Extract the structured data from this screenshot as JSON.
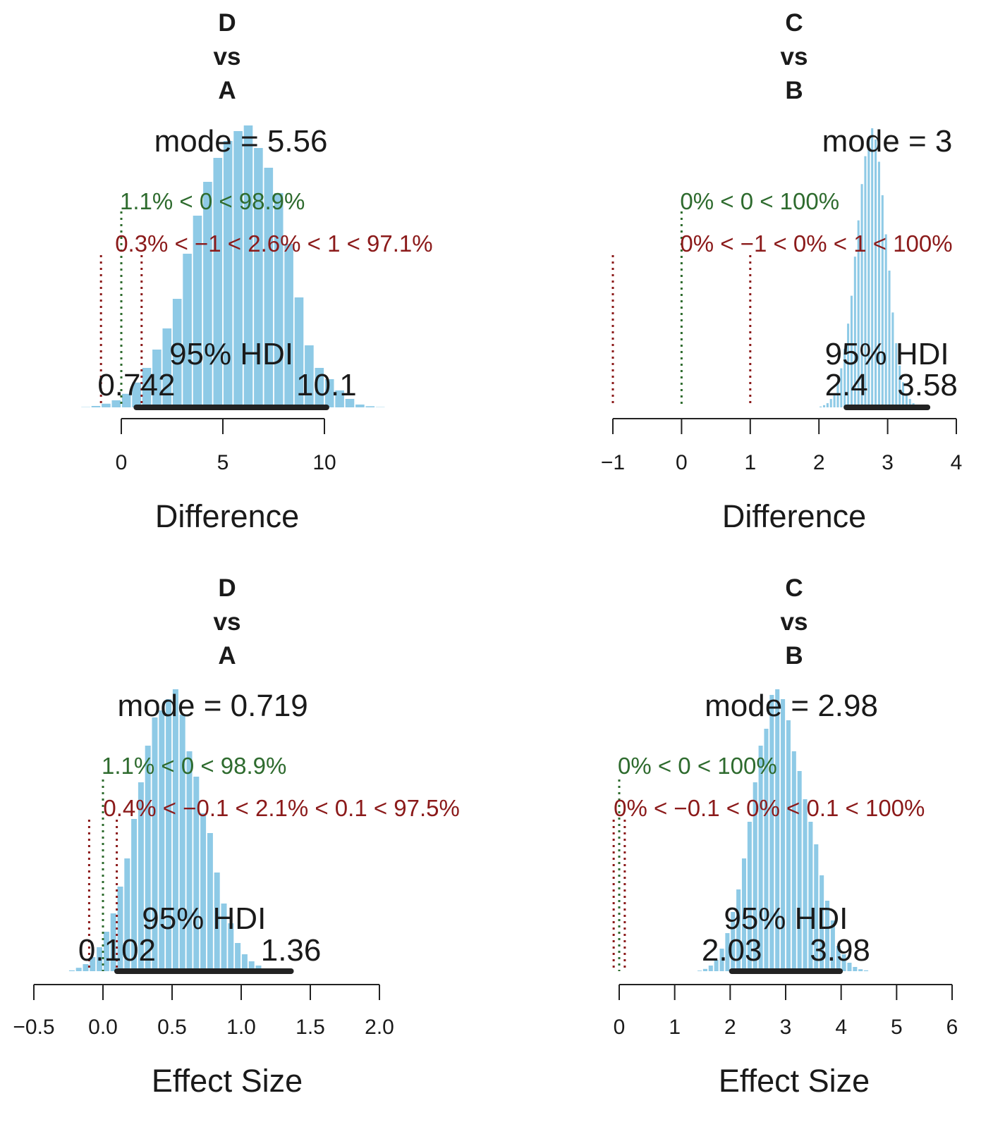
{
  "colors": {
    "bar": "#8ecae6",
    "hdi": "#222222",
    "comp": "#2e6b2e",
    "rope": "#8b1a1a",
    "axis": "#222222"
  },
  "chart_data": [
    {
      "type": "bar",
      "title": [
        "D",
        "vs",
        "A"
      ],
      "xlabel": "Difference",
      "mode_label": "mode = 5.56",
      "comp_label": "1.1% < 0 < 98.9%",
      "rope_label": "0.3% < −1 < 2.6% < 1 < 97.1%",
      "hdi_label": "95% HDI",
      "hdi": [
        0.742,
        10.1
      ],
      "hdi_text": [
        "0.742",
        "10.1"
      ],
      "comp_value": 0,
      "rope": [
        -1,
        1
      ],
      "xlim": [
        -2,
        13.5
      ],
      "xticks": [
        0,
        5,
        10
      ],
      "xtick_labels": [
        "0",
        "5",
        "10"
      ],
      "bin_start": -2,
      "bin_width": 0.5,
      "values": [
        0.1,
        0.5,
        1.3,
        2.5,
        4.8,
        8.8,
        14.0,
        20.5,
        28.0,
        38.5,
        54.5,
        68.0,
        80.0,
        88.5,
        94.5,
        98.0,
        100,
        92.0,
        85.0,
        76.0,
        58.0,
        39.0,
        22.0,
        14.0,
        10.0,
        6.0,
        3.0,
        1.0,
        0.4,
        0.1
      ]
    },
    {
      "type": "bar",
      "title": [
        "C",
        "vs",
        "B"
      ],
      "xlabel": "Difference",
      "mode_label": "mode = 3",
      "comp_label": "0% < 0 < 100%",
      "rope_label": "0% < −1 < 0% < 1 < 100%",
      "hdi_label": "95% HDI",
      "hdi": [
        2.4,
        3.58
      ],
      "hdi_text": [
        "2.4",
        "3.58"
      ],
      "comp_value": 0,
      "rope": [
        -1,
        1
      ],
      "xlim": [
        -1.1,
        4.1
      ],
      "xticks": [
        -1,
        0,
        1,
        2,
        3,
        4
      ],
      "xtick_labels": [
        "−1",
        "0",
        "1",
        "2",
        "3",
        "4"
      ],
      "bin_start": 2.0,
      "bin_width": 0.05,
      "values": [
        0.3,
        0.8,
        1.5,
        3.0,
        5.0,
        8.5,
        14.0,
        21.0,
        30.0,
        40.0,
        54.0,
        67.0,
        80.0,
        90.0,
        96.0,
        100,
        96.0,
        88.0,
        76.0,
        62.0,
        49.0,
        34.0,
        23.0,
        15.0,
        9.0,
        5.0,
        3.0,
        1.5,
        0.7,
        0.3
      ]
    },
    {
      "type": "bar",
      "title": [
        "D",
        "vs",
        "A"
      ],
      "xlabel": "Effect Size",
      "mode_label": "mode = 0.719",
      "comp_label": "1.1% < 0 < 98.9%",
      "rope_label": "0.4% < −0.1 < 2.1% < 0.1 < 97.5%",
      "hdi_label": "95% HDI",
      "hdi": [
        0.102,
        1.36
      ],
      "hdi_text": [
        "0.102",
        "1.36"
      ],
      "comp_value": 0,
      "rope": [
        -0.1,
        0.1
      ],
      "xlim": [
        -0.55,
        2.05
      ],
      "xticks": [
        -0.5,
        0.0,
        0.5,
        1.0,
        1.5,
        2.0
      ],
      "xtick_labels": [
        "−0.5",
        "0.0",
        "0.5",
        "1.0",
        "1.5",
        "2.0"
      ],
      "bin_start": -0.25,
      "bin_width": 0.05,
      "values": [
        0.3,
        1.2,
        2.5,
        5.0,
        8.5,
        14.0,
        20.5,
        30.0,
        40.0,
        54.0,
        67.0,
        80.0,
        90.0,
        92.5,
        96.5,
        100,
        91.0,
        78.0,
        69.0,
        56.0,
        49.0,
        35.0,
        24.0,
        17.0,
        10.0,
        6.0,
        3.5,
        2.0,
        0.7,
        0.2
      ]
    },
    {
      "type": "bar",
      "title": [
        "C",
        "vs",
        "B"
      ],
      "xlabel": "Effect Size",
      "mode_label": "mode = 2.98",
      "comp_label": "0% < 0 < 100%",
      "rope_label": "0% < −0.1 < 0% < 0.1 < 100%",
      "hdi_label": "95% HDI",
      "hdi": [
        2.03,
        3.98
      ],
      "hdi_text": [
        "2.03",
        "3.98"
      ],
      "comp_value": 0,
      "rope": [
        -0.1,
        0.1
      ],
      "xlim": [
        -0.1,
        6.1
      ],
      "xticks": [
        0,
        1,
        2,
        3,
        4,
        5,
        6
      ],
      "xtick_labels": [
        "0",
        "1",
        "2",
        "3",
        "4",
        "5",
        "6"
      ],
      "bin_start": 1.4,
      "bin_width": 0.1,
      "values": [
        0.2,
        0.8,
        2.0,
        4.0,
        8.0,
        13.5,
        21.0,
        29.0,
        40.0,
        53.0,
        67.0,
        80.0,
        86.0,
        98.0,
        100,
        96.5,
        89.0,
        78.0,
        71.0,
        61.0,
        53.0,
        45.0,
        34.0,
        25.0,
        18.0,
        9.0,
        6.0,
        3.0,
        1.5,
        0.7,
        0.3
      ]
    }
  ]
}
